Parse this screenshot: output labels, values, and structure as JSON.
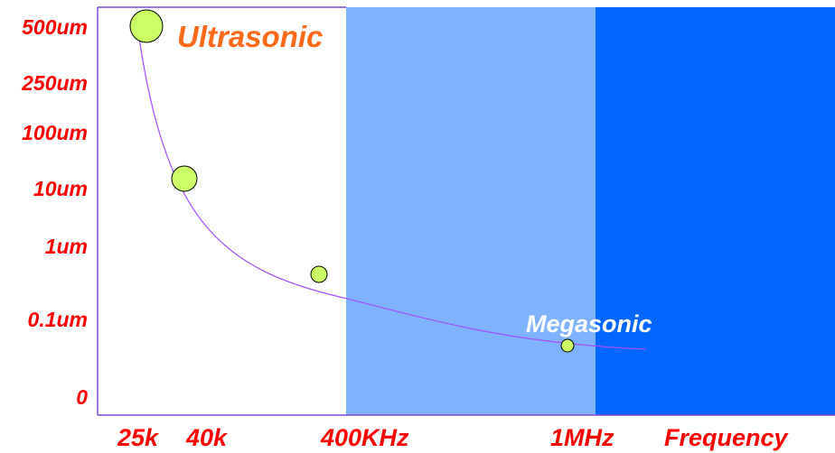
{
  "colors": {
    "axis": "#7e4bd6",
    "curve": "#a24dff",
    "ultrasonic_zone": "#ffffff",
    "mid_zone": "#80b3ff",
    "megasonic_zone": "#0066ff",
    "bubble": "#ccff66",
    "tick_label": "#ff0000",
    "ultrasonic_label": "#ff6a1a",
    "megasonic_label": "#ffffff"
  },
  "zones": [
    {
      "name": "ultrasonic-zone",
      "from": "25k",
      "to": "400KHz",
      "color": "#ffffff"
    },
    {
      "name": "mid-zone",
      "from": "400KHz",
      "to": "1MHz",
      "color": "#80b3ff"
    },
    {
      "name": "megasonic-zone",
      "from": "1MHz",
      "to": "Frequency",
      "color": "#0066ff"
    }
  ],
  "labels": {
    "ultrasonic": "Ultrasonic",
    "megasonic": "Megasonic"
  },
  "y_ticks": [
    "500um",
    "250um",
    "100um",
    "10um",
    "1um",
    "0.1um",
    "0"
  ],
  "x_ticks": [
    "25k",
    "40k",
    "400KHz",
    "1MHz",
    "Frequency"
  ],
  "bubbles": [
    {
      "frequency": "25k",
      "size": "500um"
    },
    {
      "frequency": "40k",
      "size": "10um"
    },
    {
      "frequency": "400KHz",
      "size": "1um"
    },
    {
      "frequency": "1MHz",
      "size": "0.1um"
    }
  ]
}
